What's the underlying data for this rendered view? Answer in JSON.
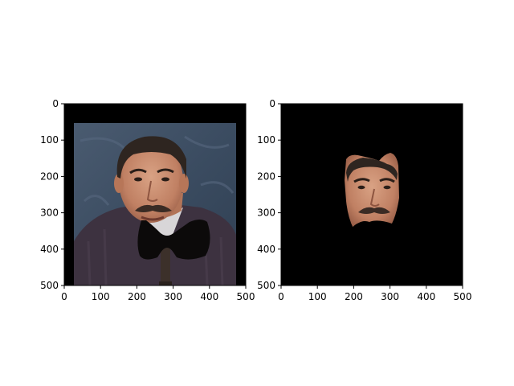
{
  "chart_data": [
    {
      "type": "image",
      "panel": "left",
      "xlim": [
        0,
        500
      ],
      "ylim": [
        500,
        0
      ],
      "xticks": [
        "0",
        "100",
        "200",
        "300",
        "400",
        "500"
      ],
      "yticks": [
        "0",
        "100",
        "200",
        "300",
        "400",
        "500"
      ],
      "content": "photo of a man with a moustache in a dark sweater on a blue-grey backdrop, lower face region covered by a black bow-tie-shaped occluder over a microphone; black border at top and sides"
    },
    {
      "type": "image",
      "panel": "right",
      "xlim": [
        0,
        500
      ],
      "ylim": [
        500,
        0
      ],
      "xticks": [
        "0",
        "100",
        "200",
        "300",
        "400",
        "500"
      ],
      "yticks": [
        "0",
        "100",
        "200",
        "300",
        "400",
        "500"
      ],
      "content": "segmented face region of the same man on a fully black background, lower portion cut off by the occluder shape"
    }
  ],
  "colors": {
    "background_fill": "#000000",
    "backdrop": "#3d4f63",
    "skin": "#c98e6e",
    "hair": "#2e2520",
    "sweater": "#3d3240",
    "occluder": "#0c0a0a"
  }
}
